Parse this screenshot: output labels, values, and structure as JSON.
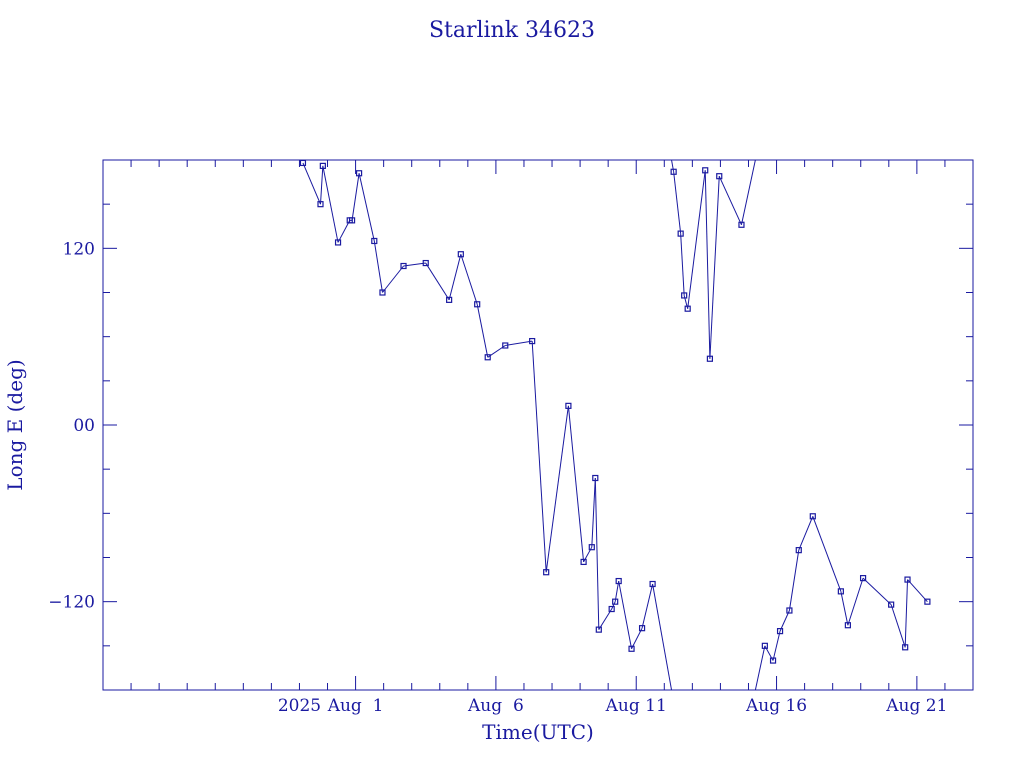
{
  "chart_data": {
    "type": "line",
    "title": "Starlink 34623",
    "xlabel": "Time(UTC)",
    "ylabel": "Long E (deg)",
    "xlim": [
      "2025-07-23",
      "2025-08-23"
    ],
    "ylim": [
      -180,
      180
    ],
    "y_ticks": [
      -120,
      0,
      120
    ],
    "y_tick_labels": [
      "−120",
      "00",
      "120"
    ],
    "x_ticks": [
      {
        "date": "2025-08-01",
        "label": "Aug  1"
      },
      {
        "date": "2025-08-06",
        "label": "Aug  6"
      },
      {
        "date": "2025-08-11",
        "label": "Aug 11"
      },
      {
        "date": "2025-08-16",
        "label": "Aug 16"
      },
      {
        "date": "2025-08-21",
        "label": "Aug 21"
      }
    ],
    "x_year_label": {
      "date": "2025-07-30",
      "label": "2025"
    },
    "grid": false,
    "color": "#1a1aa0",
    "series": [
      {
        "x": [
          "2025-07-30 03:00",
          "2025-07-30 18:00",
          "2025-07-30 20:00",
          "2025-07-31 09:00",
          "2025-07-31 19:00",
          "2025-07-31 21:00",
          "2025-08-01 03:00",
          "2025-08-01 16:00",
          "2025-08-01 23:00",
          "2025-08-02 17:00",
          "2025-08-03 12:00",
          "2025-08-04 08:00",
          "2025-08-04 18:00",
          "2025-08-05 08:00",
          "2025-08-05 17:00",
          "2025-08-06 08:00",
          "2025-08-07 07:00",
          "2025-08-07 19:00",
          "2025-08-08 14:00",
          "2025-08-09 03:00",
          "2025-08-09 10:00",
          "2025-08-09 13:00",
          "2025-08-09 16:00",
          "2025-08-10 03:00",
          "2025-08-10 06:00",
          "2025-08-10 09:00",
          "2025-08-10 20:00",
          "2025-08-11 05:00",
          "2025-08-11 14:00",
          "2025-08-12 08:00",
          "2025-08-12 14:00",
          "2025-08-12 17:00",
          "2025-08-12 20:00",
          "2025-08-13 11:00",
          "2025-08-13 15:00",
          "2025-08-13 23:00",
          "2025-08-14 18:00",
          "2025-08-15 14:00",
          "2025-08-15 21:00",
          "2025-08-16 03:00",
          "2025-08-16 11:00",
          "2025-08-16 19:00",
          "2025-08-17 07:00",
          "2025-08-18 07:00",
          "2025-08-18 13:00",
          "2025-08-19 02:00",
          "2025-08-20 02:00",
          "2025-08-20 14:00",
          "2025-08-20 16:00",
          "2025-08-21 09:00"
        ],
        "y": [
          178,
          150,
          176,
          124,
          139,
          139,
          171,
          125,
          90,
          108,
          110,
          85,
          116,
          82,
          46,
          54,
          57,
          -100,
          13,
          -93,
          -83,
          -36,
          -139,
          -125,
          -120,
          -106,
          -152,
          -138,
          -108,
          172,
          130,
          88,
          79,
          173,
          45,
          169,
          136,
          -150,
          -160,
          -140,
          -126,
          -85,
          -62,
          -113,
          -136,
          -104,
          -122,
          -151,
          -105,
          -120
        ]
      }
    ]
  }
}
